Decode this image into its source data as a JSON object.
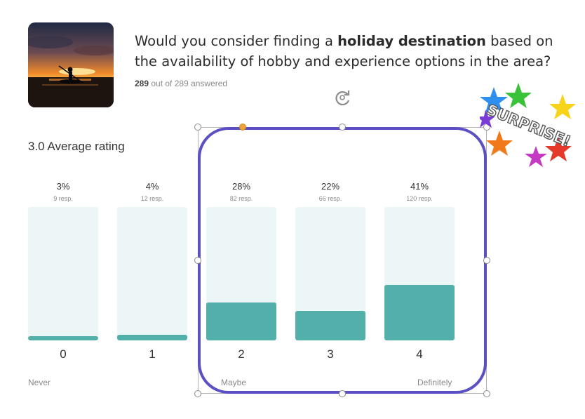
{
  "question": {
    "part1": "Would you consider finding a ",
    "bold": "holiday destination",
    "part2": " based on the availability of hobby and experience options in the area?"
  },
  "answered": {
    "count": "289",
    "text": " out of 289 answered"
  },
  "average": "3.0 Average rating",
  "chart_data": {
    "type": "bar",
    "categories": [
      "0",
      "1",
      "2",
      "3",
      "4"
    ],
    "percents": [
      "3%",
      "4%",
      "28%",
      "22%",
      "41%"
    ],
    "responses": [
      "9 resp.",
      "12 resp.",
      "82 resp.",
      "66 resp.",
      "120 resp."
    ],
    "values": [
      3,
      4,
      28,
      22,
      41
    ],
    "ylim": [
      0,
      100
    ],
    "scale_labels": {
      "low": "Never",
      "mid": "Maybe",
      "high": "Definitely"
    }
  },
  "sticker_text": "SURPRISE!",
  "colors": {
    "bar_fill": "#52afaa",
    "bar_track": "#edf6f7",
    "selection": "#5b4fc4",
    "adjust_handle": "#f0a33a"
  },
  "icons": {
    "rotate": "rotate-icon",
    "photo": "kayak-sunset-photo",
    "sticker": "surprise-starburst"
  }
}
